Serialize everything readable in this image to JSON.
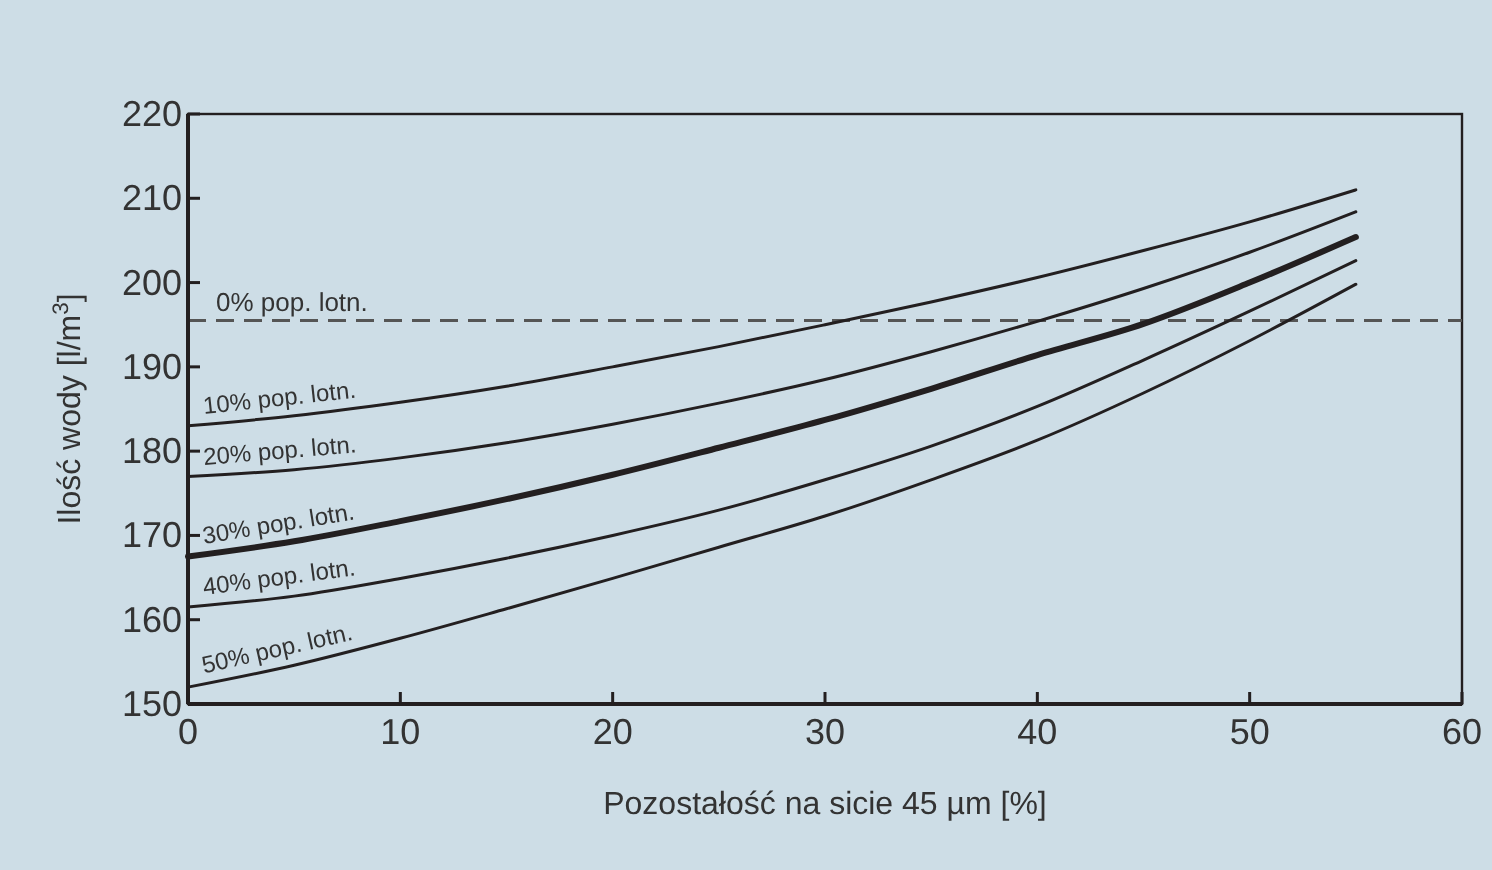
{
  "chart_data": {
    "type": "line",
    "xlabel": "Pozostałość na sicie 45 µm [%]",
    "ylabel": "Ilość wody [l/m$^{3}$]",
    "x": [
      0,
      5,
      10,
      15,
      20,
      25,
      30,
      35,
      40,
      45,
      50,
      55
    ],
    "xlim": [
      0,
      60
    ],
    "xticks": [
      0,
      10,
      20,
      30,
      40,
      50,
      60
    ],
    "ylim": [
      150,
      220
    ],
    "yticks": [
      150,
      160,
      170,
      180,
      190,
      200,
      210,
      220
    ],
    "grid": false,
    "marker": "none",
    "line_style": "solid",
    "ref_lines": [
      {
        "axis": "y",
        "value": 195.5,
        "label": "0% pop. lotn.",
        "color": "#555555",
        "line_style": "dashed"
      }
    ],
    "series": [
      {
        "name": "10% pop. lotn.",
        "color": "#231f20",
        "values": [
          183,
          184.2,
          185.8,
          187.7,
          190,
          192.4,
          195,
          197.7,
          200.6,
          203.8,
          207.2,
          211
        ]
      },
      {
        "name": "20% pop. lotn.",
        "color": "#231f20",
        "values": [
          177,
          177.8,
          179.2,
          181,
          183.2,
          185.7,
          188.5,
          191.8,
          195.4,
          199.3,
          203.6,
          208.4
        ]
      },
      {
        "name": "30% pop. lotn.",
        "color": "#231f20",
        "values": [
          167.5,
          169.3,
          171.7,
          174.3,
          177.2,
          180.4,
          183.7,
          187.4,
          191.4,
          195.1,
          200,
          205.4
        ]
      },
      {
        "name": "40% pop. lotn.",
        "color": "#231f20",
        "values": [
          161.5,
          162.8,
          164.9,
          167.3,
          170,
          173,
          176.6,
          180.6,
          185.3,
          190.8,
          196.6,
          202.6
        ]
      },
      {
        "name": "50% pop. lotn.",
        "color": "#231f20",
        "values": [
          152,
          154.6,
          157.8,
          161.3,
          164.9,
          168.6,
          172.3,
          176.6,
          181.3,
          186.9,
          193.1,
          199.8
        ]
      }
    ]
  }
}
